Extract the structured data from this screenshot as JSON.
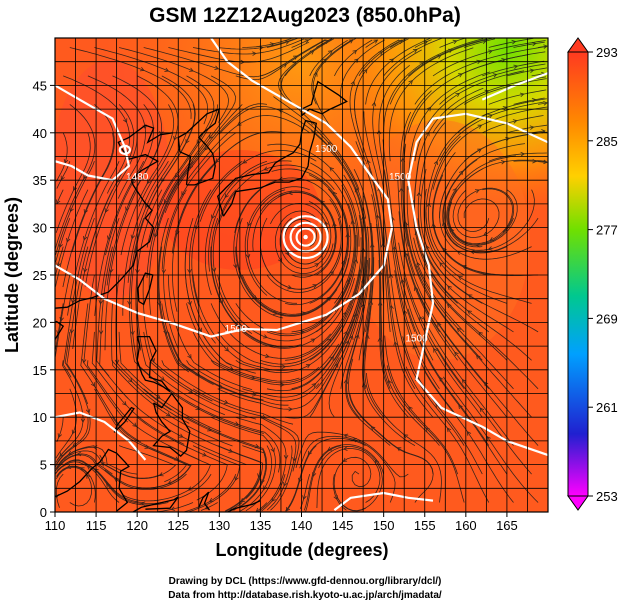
{
  "chart_data": {
    "type": "heatmap",
    "title": "GSM 12Z12Aug2023 (850.0hPa)",
    "xlabel": "Longitude (degrees)",
    "ylabel": "Latitude  (degrees)",
    "xlim": [
      110,
      170
    ],
    "ylim": [
      0,
      50
    ],
    "x_ticks": [
      110,
      115,
      120,
      125,
      130,
      135,
      140,
      145,
      150,
      155,
      160,
      165
    ],
    "y_ticks": [
      0,
      5,
      10,
      15,
      20,
      25,
      30,
      35,
      40,
      45
    ],
    "grid": true,
    "colorbar": {
      "ticks": [
        253,
        261,
        269,
        277,
        285,
        293
      ],
      "range": [
        253,
        293
      ],
      "colors": [
        "#ff00ff",
        "#2020d0",
        "#00a0ff",
        "#00d070",
        "#80e000",
        "#ffd000",
        "#ff8000",
        "#ff4020"
      ]
    },
    "contour_labels": [
      {
        "text": "1500",
        "lon": 152,
        "lat": 35
      },
      {
        "text": "1500",
        "lon": 143,
        "lat": 38
      },
      {
        "text": "1480",
        "lon": 120,
        "lat": 35
      },
      {
        "text": "1500",
        "lon": 132,
        "lat": 19
      },
      {
        "text": "1500",
        "lon": 154,
        "lat": 18
      }
    ],
    "typhoon_center": {
      "lon": 140.5,
      "lat": 29
    }
  },
  "credits": {
    "line1": "Drawing by DCL (https://www.gfd-dennou.org/library/dcl/)",
    "line2": "Data from http://database.rish.kyoto-u.ac.jp/arch/jmadata/"
  }
}
